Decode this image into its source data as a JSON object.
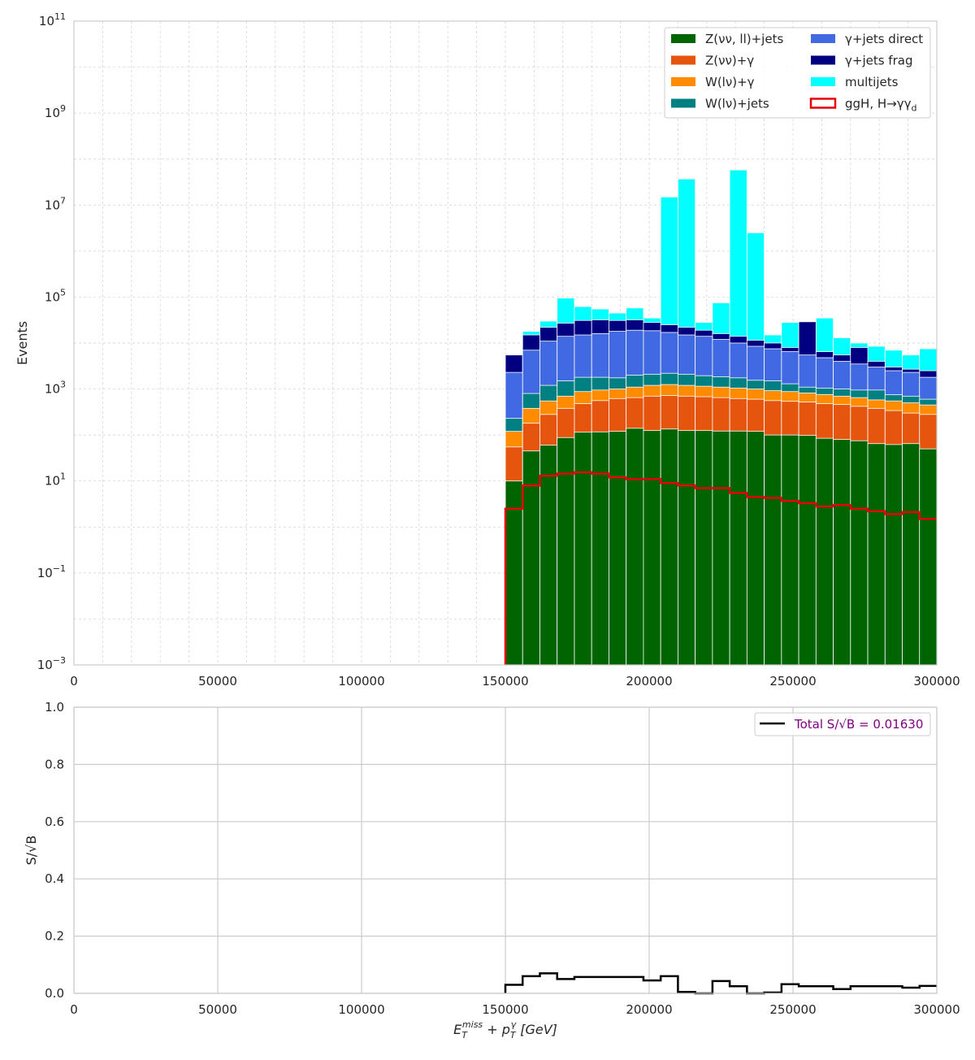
{
  "chart_data": [
    {
      "type": "bar",
      "stacked": true,
      "ylabel": "Events",
      "yscale": "log",
      "ylim": [
        0.001,
        100000000000
      ],
      "xlim": [
        0,
        300000
      ],
      "grid": true,
      "legend_position": "top-right",
      "x_ticks": [
        {
          "value": 0,
          "label": "0"
        },
        {
          "value": 50000,
          "label": "50000"
        },
        {
          "value": 100000,
          "label": "100000"
        },
        {
          "value": 150000,
          "label": "150000"
        },
        {
          "value": 200000,
          "label": "200000"
        },
        {
          "value": 250000,
          "label": "250000"
        },
        {
          "value": 300000,
          "label": "300000"
        }
      ],
      "y_ticks": [
        {
          "value": 0.001,
          "base": "10",
          "exp": "−3"
        },
        {
          "value": 0.1,
          "base": "10",
          "exp": "−1"
        },
        {
          "value": 10,
          "base": "10",
          "exp": "1"
        },
        {
          "value": 1000,
          "base": "10",
          "exp": "3"
        },
        {
          "value": 100000,
          "base": "10",
          "exp": "5"
        },
        {
          "value": 10000000,
          "base": "10",
          "exp": "7"
        },
        {
          "value": 1000000000,
          "base": "10",
          "exp": "9"
        },
        {
          "value": 100000000000,
          "base": "10",
          "exp": "11"
        }
      ],
      "bin_edges_start": 150000,
      "bin_width": 6000,
      "n_bins": 25,
      "cumulative_tops": [
        {
          "name": "Z(νν, ll)+jets",
          "color": "#006400",
          "values": [
            10,
            45,
            60,
            88,
            115,
            117,
            120,
            140,
            125,
            135,
            125,
            125,
            122,
            122,
            120,
            100,
            100,
            98,
            85,
            80,
            75,
            65,
            62,
            65,
            50
          ]
        },
        {
          "name": "Z(νν)+γ",
          "color": "#E6550D",
          "values": [
            55,
            180,
            280,
            380,
            480,
            560,
            620,
            650,
            700,
            720,
            700,
            680,
            650,
            620,
            600,
            560,
            540,
            520,
            480,
            460,
            420,
            380,
            340,
            300,
            280
          ]
        },
        {
          "name": "W(lν)+γ",
          "color": "#FF8C00",
          "values": [
            120,
            380,
            550,
            700,
            880,
            950,
            1000,
            1100,
            1200,
            1250,
            1200,
            1150,
            1100,
            1050,
            1000,
            920,
            880,
            820,
            760,
            700,
            650,
            580,
            550,
            500,
            450
          ]
        },
        {
          "name": "W(lν)+jets",
          "color": "#008080",
          "values": [
            230,
            800,
            1200,
            1500,
            1800,
            1800,
            1750,
            2000,
            2100,
            2200,
            2100,
            1950,
            1850,
            1750,
            1550,
            1500,
            1300,
            1100,
            1050,
            1000,
            950,
            950,
            750,
            700,
            600
          ]
        },
        {
          "name": "γ+jets direct",
          "color": "#4169E1",
          "values": [
            2300,
            7000,
            11000,
            14000,
            15000,
            16000,
            18000,
            19000,
            18500,
            17000,
            15000,
            14000,
            12000,
            10000,
            8500,
            7500,
            6500,
            5500,
            4800,
            4000,
            3500,
            3000,
            2500,
            2300,
            1800
          ]
        },
        {
          "name": "γ+jets frag",
          "color": "#000080",
          "values": [
            5500,
            15000,
            22000,
            27000,
            31000,
            32000,
            31000,
            32000,
            28000,
            25000,
            22000,
            19000,
            16000,
            14000,
            11500,
            10000,
            8000,
            29000,
            6500,
            5500,
            8000,
            4000,
            3000,
            2700,
            2500
          ]
        },
        {
          "name": "multijets",
          "color": "#00FFFF",
          "values": [
            5500,
            18000,
            30000,
            95000,
            62000,
            55000,
            45000,
            58000,
            35000,
            15000000,
            37000000,
            28000,
            75000,
            58000000,
            2500000,
            15000,
            28000,
            17000,
            35000,
            13000,
            10000,
            8500,
            7000,
            5500,
            7500
          ]
        }
      ],
      "signal": {
        "name": "ggH, H→γγ_d",
        "color": "#E8000B",
        "values": [
          2.5,
          8,
          13,
          14.5,
          15.5,
          14.5,
          12,
          11,
          11,
          9,
          8,
          7,
          7,
          5.5,
          4.5,
          4.3,
          3.7,
          3.3,
          2.8,
          3,
          2.5,
          2.2,
          1.9,
          2.1,
          1.5
        ]
      },
      "legend": {
        "col1": [
          {
            "label_main": "Z(νν, ll)+jets",
            "color": "#006400"
          },
          {
            "label_main": "Z(νν)+γ",
            "color": "#E6550D"
          },
          {
            "label_main": "W(lν)+γ",
            "color": "#FF8C00"
          },
          {
            "label_main": "W(lν)+jets",
            "color": "#008080"
          }
        ],
        "col2": [
          {
            "label_main": "γ+jets direct",
            "color": "#4169E1"
          },
          {
            "label_main": "γ+jets frag",
            "color": "#000080"
          },
          {
            "label_main": "multijets",
            "color": "#00FFFF"
          },
          {
            "label_main": "ggH, H→γγ",
            "label_sub": "d",
            "color": "#E8000B",
            "outline": true
          }
        ]
      }
    },
    {
      "type": "line",
      "step": true,
      "ylabel": "S/√B",
      "xlabel_main": "E",
      "xlabel_parts": [
        "E",
        "T",
        "miss",
        " + p",
        "T",
        "γ",
        " [GeV]"
      ],
      "xlim": [
        0,
        300000
      ],
      "ylim": [
        0,
        1
      ],
      "grid": true,
      "legend_position": "top-right",
      "legend_label": "Total S/√B = 0.01630",
      "legend_text_color": "#800080",
      "x_ticks": [
        {
          "value": 0,
          "label": "0"
        },
        {
          "value": 50000,
          "label": "50000"
        },
        {
          "value": 100000,
          "label": "100000"
        },
        {
          "value": 150000,
          "label": "150000"
        },
        {
          "value": 200000,
          "label": "200000"
        },
        {
          "value": 250000,
          "label": "250000"
        },
        {
          "value": 300000,
          "label": "300000"
        }
      ],
      "y_ticks": [
        {
          "value": 0,
          "label": "0.0"
        },
        {
          "value": 0.2,
          "label": "0.2"
        },
        {
          "value": 0.4,
          "label": "0.4"
        },
        {
          "value": 0.6,
          "label": "0.6"
        },
        {
          "value": 0.8,
          "label": "0.8"
        },
        {
          "value": 1.0,
          "label": "1.0"
        }
      ],
      "x_start": 150000,
      "x_start_line_min": 3000,
      "bin_width": 6000,
      "values": [
        0.03,
        0.06,
        0.07,
        0.05,
        0.057,
        0.057,
        0.057,
        0.057,
        0.045,
        0.06,
        0.005,
        0.0,
        0.043,
        0.025,
        0.0,
        0.003,
        0.032,
        0.025,
        0.025,
        0.015,
        0.025,
        0.025,
        0.025,
        0.02,
        0.026
      ]
    }
  ]
}
